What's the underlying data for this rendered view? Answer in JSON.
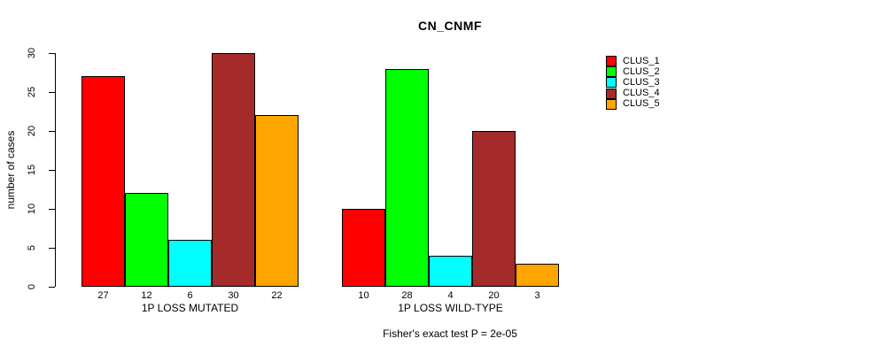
{
  "chart_data": {
    "type": "bar",
    "title": "CN_CNMF",
    "ylabel": "number of cases",
    "xlabel": "",
    "ylim": [
      0,
      30
    ],
    "yticks": [
      0,
      5,
      10,
      15,
      20,
      25,
      30
    ],
    "grid": false,
    "legend_position": "top-right",
    "categories": [
      "CLUS_1",
      "CLUS_2",
      "CLUS_3",
      "CLUS_4",
      "CLUS_5"
    ],
    "series": [
      {
        "name": "CLUS_1",
        "color": "#FF0000"
      },
      {
        "name": "CLUS_2",
        "color": "#00FF00"
      },
      {
        "name": "CLUS_3",
        "color": "#00FFFF"
      },
      {
        "name": "CLUS_4",
        "color": "#A52A2A"
      },
      {
        "name": "CLUS_5",
        "color": "#FFA500"
      }
    ],
    "groups": [
      {
        "label": "1P LOSS MUTATED",
        "values": [
          27,
          12,
          6,
          30,
          22
        ]
      },
      {
        "label": "1P LOSS WILD-TYPE",
        "values": [
          10,
          28,
          4,
          20,
          3
        ]
      }
    ],
    "annotation": "Fisher's exact test P = 2e-05"
  }
}
